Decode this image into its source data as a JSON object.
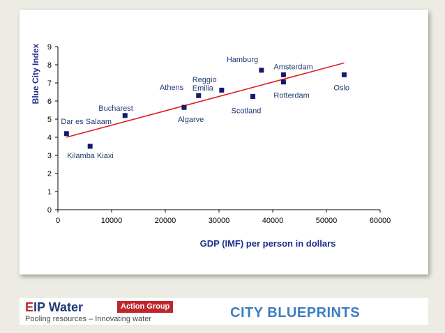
{
  "chart_data": {
    "type": "scatter",
    "xlabel": "GDP (IMF)  per person in dollars",
    "ylabel": "Blue City Index",
    "xlim": [
      0,
      60000
    ],
    "ylim": [
      0,
      9
    ],
    "x_ticks": [
      "0",
      "10000",
      "20000",
      "30000",
      "40000",
      "50000",
      "60000"
    ],
    "y_ticks": [
      "0",
      "1",
      "2",
      "3",
      "4",
      "5",
      "6",
      "7",
      "8",
      "9"
    ],
    "points": [
      {
        "label": "Dar es Salaam",
        "x": 1600,
        "y": 4.2
      },
      {
        "label": "Kilamba Kiaxi",
        "x": 6000,
        "y": 3.5
      },
      {
        "label": "Bucharest",
        "x": 12500,
        "y": 5.2
      },
      {
        "label": "Athens",
        "x": 23500,
        "y": 5.65
      },
      {
        "label": "Algarve",
        "x": 23500,
        "y": 5.65
      },
      {
        "label": "Reggio Emilia",
        "x": 26200,
        "y": 6.3
      },
      {
        "label": "",
        "x": 30500,
        "y": 6.6
      },
      {
        "label": "Scotland",
        "x": 36300,
        "y": 6.25
      },
      {
        "label": "Hamburg",
        "x": 37900,
        "y": 7.7
      },
      {
        "label": "Amsterdam",
        "x": 42000,
        "y": 7.45
      },
      {
        "label": "Rotterdam",
        "x": 42000,
        "y": 7.05
      },
      {
        "label": "Oslo",
        "x": 53300,
        "y": 7.45
      }
    ],
    "trendline": {
      "x": [
        1600,
        53300
      ],
      "y": [
        4.0,
        8.1
      ]
    },
    "grid": false,
    "colors": {
      "marker": "#141a6e",
      "trendline": "#e02020"
    }
  },
  "footer": {
    "logo_e": "E",
    "logo_rest": "IP Water",
    "logo_badge": "Action Group",
    "logo_tagline": "Pooling resources – Innovating water",
    "title": "CITY BLUEPRINTS"
  }
}
